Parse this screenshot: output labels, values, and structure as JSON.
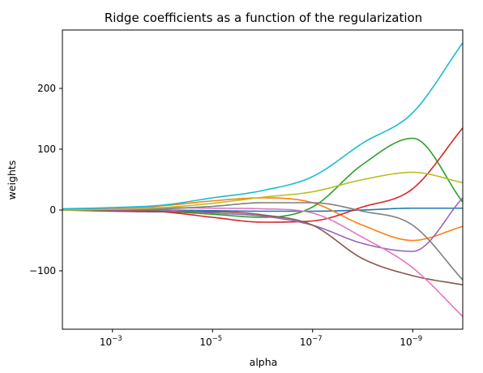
{
  "chart_data": {
    "type": "line",
    "title": "Ridge coefficients as a function of the regularization",
    "xlabel": "alpha",
    "ylabel": "weights",
    "x_scale": "log",
    "x_reversed": true,
    "xlim": [
      0.01,
      1e-10
    ],
    "ylim": [
      -196,
      296
    ],
    "grid": false,
    "x_ticks": [
      {
        "value": 0.001,
        "base": "10",
        "exp": "−3"
      },
      {
        "value": 1e-05,
        "base": "10",
        "exp": "−5"
      },
      {
        "value": 1e-07,
        "base": "10",
        "exp": "−7"
      },
      {
        "value": 1e-09,
        "base": "10",
        "exp": "−9"
      }
    ],
    "y_ticks": [
      {
        "value": 200,
        "label": "200"
      },
      {
        "value": 100,
        "label": "100"
      },
      {
        "value": 0,
        "label": "0"
      },
      {
        "value": -100,
        "label": "−100"
      }
    ],
    "x": [
      0.01,
      0.001,
      0.0001,
      1e-05,
      1e-06,
      1e-07,
      1e-08,
      1e-09,
      1e-10
    ],
    "series": [
      {
        "color": "#1f77b4",
        "values": [
          1,
          1,
          0,
          -1,
          -2,
          -2,
          0,
          3,
          3
        ]
      },
      {
        "color": "#ff7f0e",
        "values": [
          0,
          2,
          7,
          15,
          20,
          12,
          -25,
          -50,
          -27
        ]
      },
      {
        "color": "#2ca02c",
        "values": [
          1,
          0,
          -2,
          -7,
          -12,
          5,
          75,
          118,
          13
        ]
      },
      {
        "color": "#d62728",
        "values": [
          0,
          -1,
          -3,
          -12,
          -20,
          -18,
          5,
          35,
          135
        ]
      },
      {
        "color": "#9467bd",
        "values": [
          0,
          0,
          0,
          -5,
          -10,
          -25,
          -55,
          -68,
          20
        ]
      },
      {
        "color": "#8c564b",
        "values": [
          0,
          -2,
          -3,
          -3,
          -8,
          -25,
          -80,
          -108,
          -123
        ]
      },
      {
        "color": "#e377c2",
        "values": [
          0,
          3,
          4,
          3,
          2,
          -5,
          -45,
          -95,
          -175
        ]
      },
      {
        "color": "#7f7f7f",
        "values": [
          0,
          1,
          2,
          6,
          12,
          12,
          -2,
          -25,
          -115
        ]
      },
      {
        "color": "#bcbd22",
        "values": [
          0,
          1,
          4,
          11,
          21,
          30,
          50,
          62,
          45
        ]
      },
      {
        "color": "#17becf",
        "values": [
          2,
          4,
          8,
          20,
          32,
          55,
          110,
          160,
          275
        ]
      }
    ]
  }
}
